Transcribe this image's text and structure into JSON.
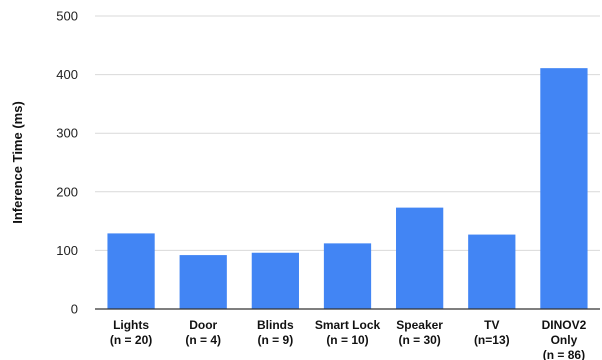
{
  "chart_data": {
    "type": "bar",
    "title": "",
    "xlabel": "",
    "ylabel": "Inference Time (ms)",
    "ylim": [
      0,
      500
    ],
    "yticks": [
      0,
      100,
      200,
      300,
      400,
      500
    ],
    "grid": true,
    "legend": "none",
    "color": "#4285f4",
    "categories": [
      [
        "Lights",
        "(n = 20)"
      ],
      [
        "Door",
        "(n = 4)"
      ],
      [
        "Blinds",
        "(n = 9)"
      ],
      [
        "Smart Lock",
        "(n = 10)"
      ],
      [
        "Speaker",
        "(n = 30)"
      ],
      [
        "TV",
        "(n=13)"
      ],
      [
        "DINOV2",
        "Only",
        "(n = 86)"
      ]
    ],
    "values": [
      129,
      92,
      96,
      112,
      173,
      127,
      411
    ]
  }
}
